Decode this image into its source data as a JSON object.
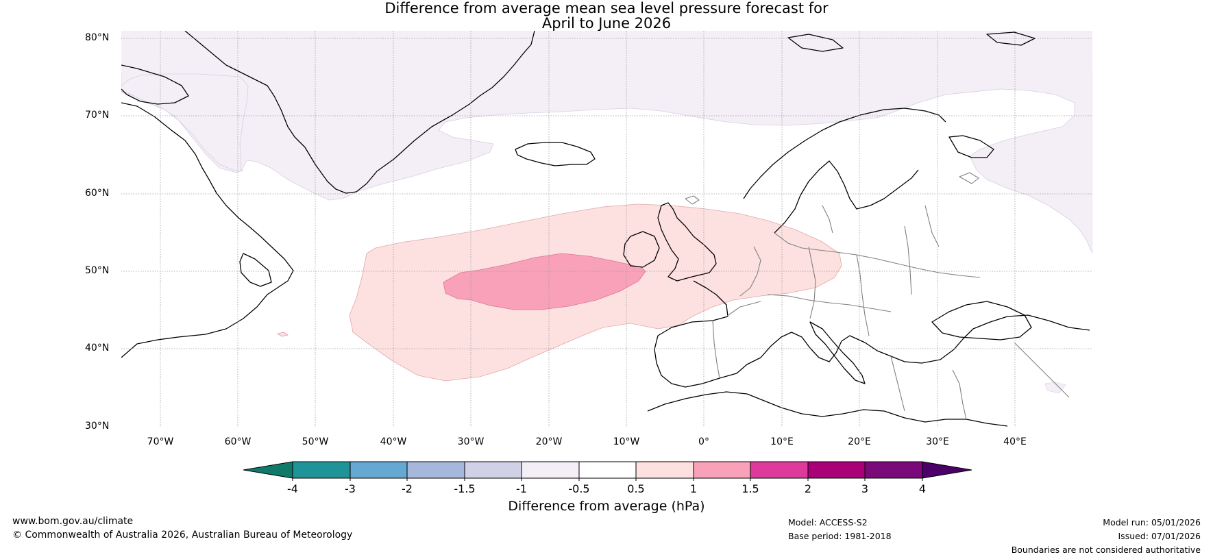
{
  "title": {
    "line1": "Difference from average mean sea level pressure forecast for",
    "line2": "April to June 2026"
  },
  "map": {
    "lat_labels": [
      "80°N",
      "70°N",
      "60°N",
      "50°N",
      "40°N",
      "30°N"
    ],
    "lon_labels": [
      "70°W",
      "60°W",
      "50°W",
      "40°W",
      "30°W",
      "20°W",
      "10°W",
      "0°",
      "10°E",
      "20°E",
      "30°E",
      "40°E"
    ],
    "extent": {
      "lon": [
        -75,
        50
      ],
      "lat": [
        30,
        81
      ]
    },
    "anomaly_regions": [
      {
        "name": "high-latitude negative anomaly",
        "class": "-1 to -0.5",
        "color": "#f4eef6"
      },
      {
        "name": "North Atlantic positive anomaly",
        "class": "0.5 to 1",
        "color": "#fde0e0"
      },
      {
        "name": "North Atlantic core positive anomaly",
        "class": "1 to 1.5",
        "color": "#f8a1b8"
      }
    ]
  },
  "colorbar": {
    "title": "Difference from average (hPa)",
    "tick_labels": [
      "-4",
      "-3",
      "-2",
      "-1.5",
      "-1",
      "-0.5",
      "0.5",
      "1",
      "1.5",
      "2",
      "3",
      "4"
    ],
    "colors": [
      "#0f7a6a",
      "#1e9499",
      "#65a8d1",
      "#a6b7dc",
      "#d0d0e6",
      "#f4eef6",
      "#ffffff",
      "#fde0e0",
      "#f8a1b8",
      "#dd3a9b",
      "#a90078",
      "#7a0a7a",
      "#4a0068"
    ]
  },
  "footer": {
    "website": "www.bom.gov.au/climate",
    "copyright": "© Commonwealth of Australia 2026, Australian Bureau of Meteorology",
    "model": "Model: ACCESS-S2",
    "base_period": "Base period: 1981-2018",
    "model_run": "Model run: 05/01/2026",
    "issued": "Issued: 07/01/2026",
    "disclaimer": "Boundaries are not considered authoritative"
  }
}
